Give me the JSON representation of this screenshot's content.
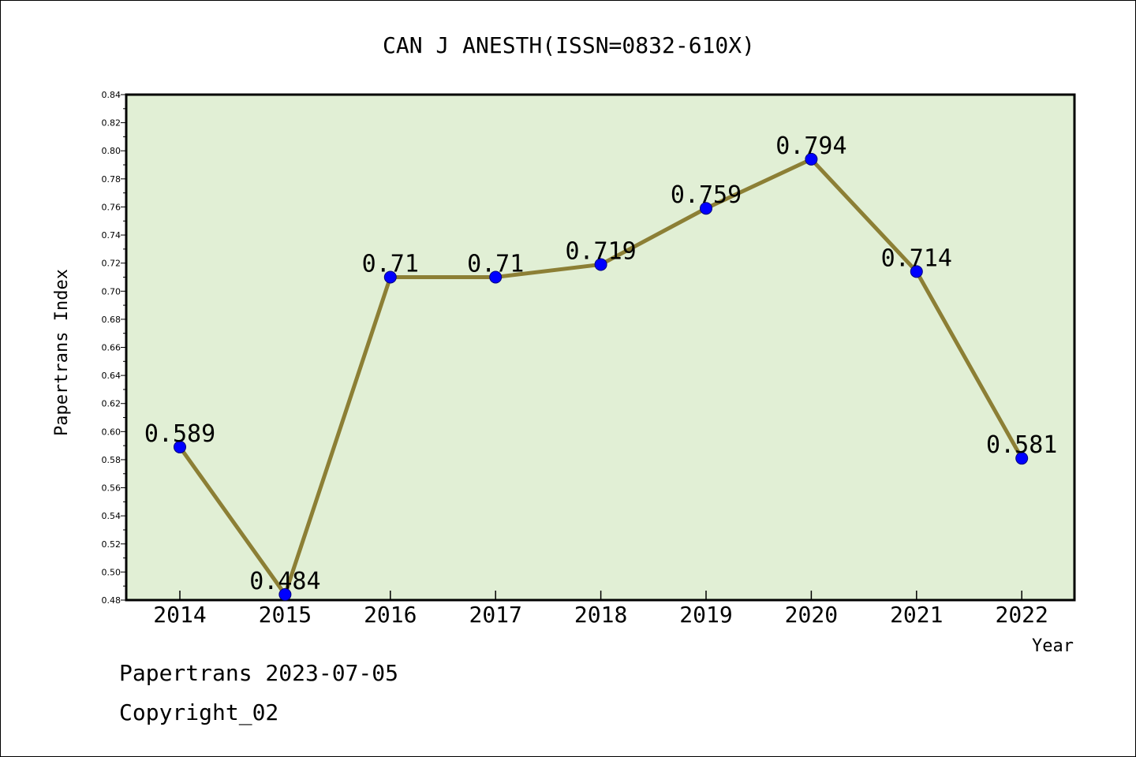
{
  "chart_data": {
    "type": "line",
    "title": "CAN J ANESTH(ISSN=0832-610X)",
    "xlabel": "Year",
    "ylabel": "Papertrans Index",
    "categories": [
      "2014",
      "2015",
      "2016",
      "2017",
      "2018",
      "2019",
      "2020",
      "2021",
      "2022"
    ],
    "values": [
      0.589,
      0.484,
      0.71,
      0.71,
      0.719,
      0.759,
      0.794,
      0.714,
      0.581
    ],
    "data_labels": [
      "0.589",
      "0.484",
      "0.71",
      "0.71",
      "0.719",
      "0.759",
      "0.794",
      "0.714",
      "0.581"
    ],
    "ylim": [
      0.48,
      0.84
    ],
    "yticks": [
      "0.48",
      "0.50",
      "0.52",
      "0.54",
      "0.56",
      "0.58",
      "0.60",
      "0.62",
      "0.64",
      "0.66",
      "0.68",
      "0.70",
      "0.72",
      "0.74",
      "0.76",
      "0.78",
      "0.80",
      "0.82",
      "0.84"
    ],
    "grid": false,
    "legend": "none",
    "colors": {
      "plot_background": "#e1efd5",
      "line": "#8c7f35",
      "marker": "#0000ff",
      "axis": "#000000"
    }
  },
  "footer": {
    "line1": "Papertrans 2023-07-05",
    "line2": "Copyright_02"
  }
}
